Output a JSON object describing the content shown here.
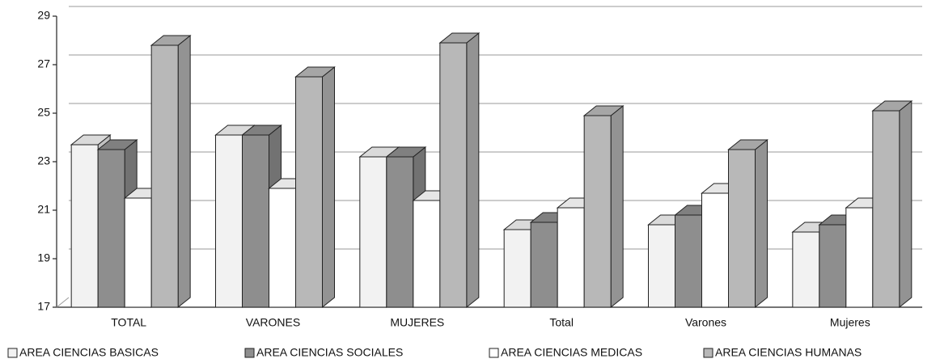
{
  "chart_data": {
    "type": "bar3d",
    "categories": [
      "TOTAL",
      "VARONES",
      "MUJERES",
      "Total",
      "Varones",
      "Mujeres"
    ],
    "series": [
      {
        "name": "AREA CIENCIAS BASICAS",
        "color": "#f2f2f2",
        "values": [
          23.7,
          24.1,
          23.2,
          20.2,
          20.4,
          20.1
        ]
      },
      {
        "name": "AREA CIENCIAS SOCIALES",
        "color": "#8e8e8e",
        "values": [
          23.5,
          24.1,
          23.2,
          20.5,
          20.8,
          20.4
        ]
      },
      {
        "name": "AREA CIENCIAS MEDICAS",
        "color": "#ffffff",
        "values": [
          21.5,
          21.9,
          21.4,
          21.1,
          21.7,
          21.1
        ]
      },
      {
        "name": "AREA CIENCIAS HUMANAS",
        "color": "#b8b8b8",
        "values": [
          27.8,
          26.5,
          27.9,
          24.9,
          23.5,
          25.1
        ]
      }
    ],
    "ylim": [
      17,
      29
    ],
    "yticks": [
      17,
      19,
      21,
      23,
      25,
      27,
      29
    ],
    "grid": true
  }
}
